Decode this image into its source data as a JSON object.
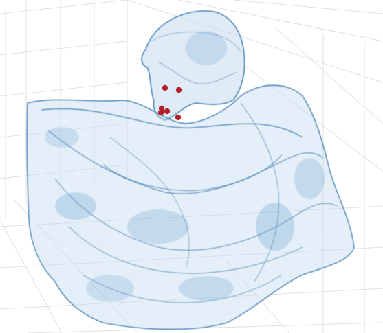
{
  "scene": {
    "description_free": true,
    "colors": {
      "background": "#ffffff",
      "grid_line": "#dcdcdc",
      "mesh_fill": "#7fb0d8",
      "mesh_edge": "#3d7fb6",
      "landmark": "#b3202a"
    },
    "landmark_count": 6
  }
}
